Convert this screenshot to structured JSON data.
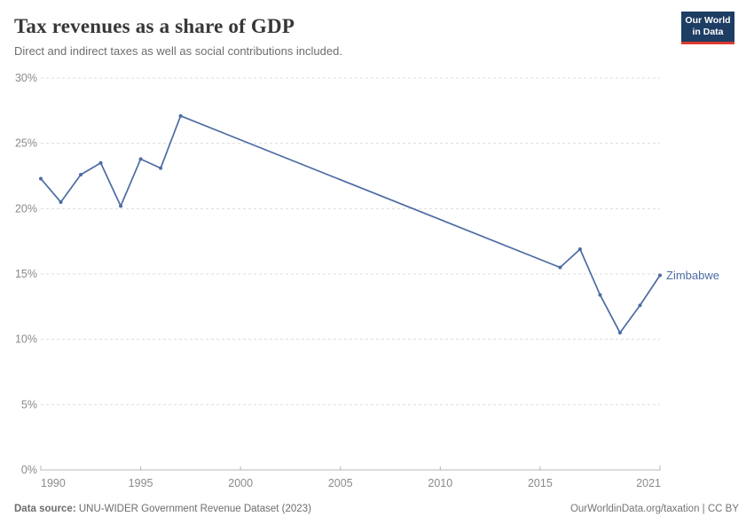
{
  "header": {
    "title": "Tax revenues as a share of GDP",
    "subtitle": "Direct and indirect taxes as well as social contributions included.",
    "logo": {
      "line1": "Our World",
      "line2": "in Data",
      "bg_color": "#1d3d63",
      "accent_color": "#dc3a2e"
    }
  },
  "chart_data": {
    "type": "line",
    "title": "Tax revenues as a share of GDP",
    "xlabel": "",
    "ylabel": "",
    "xlim": [
      1990,
      2021
    ],
    "ylim": [
      0,
      30
    ],
    "xticks": [
      1990,
      1995,
      2000,
      2005,
      2010,
      2015,
      2021
    ],
    "yticks": [
      0,
      5,
      10,
      15,
      20,
      25,
      30
    ],
    "ytick_suffix": "%",
    "grid": "horizontal-dashed",
    "legend_position": "end-of-line",
    "series": [
      {
        "name": "Zimbabwe",
        "color": "#4c6ba3",
        "points": [
          [
            1990,
            22.3
          ],
          [
            1991,
            20.5
          ],
          [
            1992,
            22.6
          ],
          [
            1993,
            23.5
          ],
          [
            1994,
            20.2
          ],
          [
            1995,
            23.8
          ],
          [
            1996,
            23.1
          ],
          [
            1997,
            27.1
          ],
          [
            2016,
            15.5
          ],
          [
            2017,
            16.9
          ],
          [
            2018,
            13.4
          ],
          [
            2019,
            10.5
          ],
          [
            2020,
            12.6
          ],
          [
            2021,
            14.9
          ]
        ]
      }
    ],
    "note": "Line connects 1997 directly to 2016 (no data in between)"
  },
  "footer": {
    "source_label": "Data source:",
    "source_text": " UNU-WIDER Government Revenue Dataset (2023)",
    "credit": "OurWorldinData.org/taxation | CC BY"
  },
  "colors": {
    "axis_text": "#8a8a8a",
    "gridline": "#dcdcdc",
    "axis_line": "#b8b8b8"
  }
}
